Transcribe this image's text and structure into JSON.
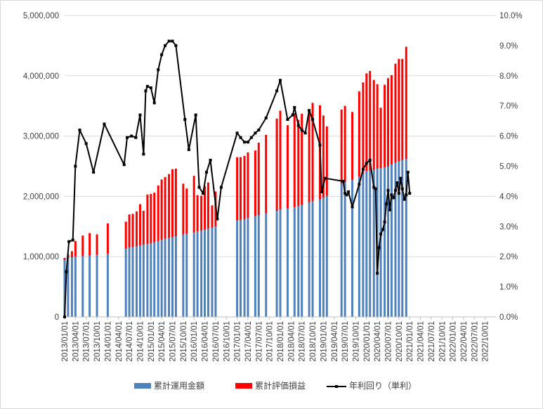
{
  "chart_data": {
    "type": "bar",
    "stacked": true,
    "x_tick_labels": [
      "2013/01/01",
      "2013/04/01",
      "2013/07/01",
      "2013/10/01",
      "2014/01/01",
      "2014/04/01",
      "2014/07/01",
      "2014/10/01",
      "2015/01/01",
      "2015/04/01",
      "2015/07/01",
      "2015/10/01",
      "2016/01/01",
      "2016/04/01",
      "2016/07/01",
      "2016/10/01",
      "2017/01/01",
      "2017/04/01",
      "2017/07/01",
      "2017/10/01",
      "2018/01/01",
      "2018/04/01",
      "2018/07/01",
      "2018/10/01",
      "2019/01/01",
      "2019/04/01",
      "2019/07/01",
      "2019/10/01",
      "2020/01/01",
      "2020/04/01",
      "2020/07/01",
      "2020/10/01",
      "2021/01/01",
      "2021/04/01",
      "2021/07/01",
      "2021/10/01",
      "2022/01/01",
      "2022/04/01",
      "2022/07/01",
      "2022/10/01"
    ],
    "y_left": {
      "ticks": [
        "0",
        "1,000,000",
        "2,000,000",
        "3,000,000",
        "4,000,000",
        "5,000,000"
      ],
      "range": [
        0,
        5000000
      ]
    },
    "y_right": {
      "ticks": [
        "0.0%",
        "1.0%",
        "2.0%",
        "3.0%",
        "4.0%",
        "5.0%",
        "6.0%",
        "7.0%",
        "8.0%",
        "9.0%",
        "10.0%"
      ],
      "range": [
        0,
        10
      ]
    },
    "x_range": [
      2013.0,
      2023.0
    ],
    "grid": "horizontal",
    "legend_position": "bottom",
    "series": [
      {
        "name": "累計運用金額",
        "kind": "bar",
        "axis": "left",
        "color": "#4f81bd",
        "points": [
          [
            2013.0,
            950000
          ],
          [
            2013.08,
            970000
          ],
          [
            2013.17,
            990000
          ],
          [
            2013.25,
            1000000
          ],
          [
            2013.42,
            1010000
          ],
          [
            2013.58,
            1020000
          ],
          [
            2013.75,
            1030000
          ],
          [
            2014.0,
            1050000
          ],
          [
            2014.42,
            1130000
          ],
          [
            2014.5,
            1150000
          ],
          [
            2014.58,
            1160000
          ],
          [
            2014.67,
            1170000
          ],
          [
            2014.75,
            1190000
          ],
          [
            2014.83,
            1200000
          ],
          [
            2014.92,
            1210000
          ],
          [
            2015.0,
            1220000
          ],
          [
            2015.08,
            1240000
          ],
          [
            2015.17,
            1260000
          ],
          [
            2015.25,
            1280000
          ],
          [
            2015.33,
            1300000
          ],
          [
            2015.42,
            1310000
          ],
          [
            2015.5,
            1320000
          ],
          [
            2015.58,
            1340000
          ],
          [
            2015.75,
            1370000
          ],
          [
            2015.83,
            1380000
          ],
          [
            2016.0,
            1400000
          ],
          [
            2016.08,
            1420000
          ],
          [
            2016.17,
            1430000
          ],
          [
            2016.25,
            1450000
          ],
          [
            2016.33,
            1470000
          ],
          [
            2016.42,
            1480000
          ],
          [
            2016.5,
            1500000
          ],
          [
            2017.0,
            1600000
          ],
          [
            2017.08,
            1610000
          ],
          [
            2017.17,
            1620000
          ],
          [
            2017.25,
            1640000
          ],
          [
            2017.42,
            1670000
          ],
          [
            2017.5,
            1690000
          ],
          [
            2017.67,
            1720000
          ],
          [
            2017.92,
            1760000
          ],
          [
            2018.0,
            1780000
          ],
          [
            2018.17,
            1800000
          ],
          [
            2018.33,
            1820000
          ],
          [
            2018.42,
            1840000
          ],
          [
            2018.5,
            1860000
          ],
          [
            2018.67,
            1900000
          ],
          [
            2018.75,
            1920000
          ],
          [
            2018.92,
            1950000
          ],
          [
            2019.0,
            1980000
          ],
          [
            2019.08,
            2010000
          ],
          [
            2019.42,
            2220000
          ],
          [
            2019.5,
            2240000
          ],
          [
            2019.67,
            2270000
          ],
          [
            2019.83,
            2330000
          ],
          [
            2019.92,
            2370000
          ],
          [
            2020.0,
            2420000
          ],
          [
            2020.08,
            2430000
          ],
          [
            2020.17,
            2440000
          ],
          [
            2020.25,
            2460000
          ],
          [
            2020.33,
            2470000
          ],
          [
            2020.42,
            2480000
          ],
          [
            2020.5,
            2500000
          ],
          [
            2020.58,
            2530000
          ],
          [
            2020.67,
            2560000
          ],
          [
            2020.75,
            2580000
          ],
          [
            2020.83,
            2600000
          ],
          [
            2020.92,
            2620000
          ]
        ]
      },
      {
        "name": "累計評価損益",
        "kind": "bar",
        "axis": "left",
        "color": "#ff0000",
        "points": [
          [
            2013.0,
            30000
          ],
          [
            2013.08,
            70000
          ],
          [
            2013.17,
            100000
          ],
          [
            2013.25,
            260000
          ],
          [
            2013.42,
            340000
          ],
          [
            2013.58,
            370000
          ],
          [
            2013.75,
            340000
          ],
          [
            2014.0,
            500000
          ],
          [
            2014.42,
            450000
          ],
          [
            2014.5,
            550000
          ],
          [
            2014.58,
            550000
          ],
          [
            2014.67,
            580000
          ],
          [
            2014.75,
            680000
          ],
          [
            2014.83,
            560000
          ],
          [
            2014.92,
            820000
          ],
          [
            2015.0,
            820000
          ],
          [
            2015.08,
            820000
          ],
          [
            2015.17,
            920000
          ],
          [
            2015.25,
            1000000
          ],
          [
            2015.33,
            1020000
          ],
          [
            2015.42,
            1060000
          ],
          [
            2015.5,
            1130000
          ],
          [
            2015.58,
            1120000
          ],
          [
            2015.75,
            840000
          ],
          [
            2015.83,
            750000
          ],
          [
            2016.0,
            940000
          ],
          [
            2016.08,
            600000
          ],
          [
            2016.17,
            580000
          ],
          [
            2016.25,
            720000
          ],
          [
            2016.33,
            760000
          ],
          [
            2016.42,
            370000
          ],
          [
            2016.5,
            580000
          ],
          [
            2017.0,
            1050000
          ],
          [
            2017.08,
            1040000
          ],
          [
            2017.17,
            1050000
          ],
          [
            2017.25,
            1090000
          ],
          [
            2017.42,
            1090000
          ],
          [
            2017.5,
            1200000
          ],
          [
            2017.67,
            1300000
          ],
          [
            2017.92,
            1530000
          ],
          [
            2018.0,
            1640000
          ],
          [
            2018.17,
            1380000
          ],
          [
            2018.33,
            1560000
          ],
          [
            2018.42,
            1430000
          ],
          [
            2018.5,
            1510000
          ],
          [
            2018.67,
            1530000
          ],
          [
            2018.75,
            1630000
          ],
          [
            2018.92,
            1560000
          ],
          [
            2019.0,
            1360000
          ],
          [
            2019.08,
            1150000
          ],
          [
            2019.42,
            1220000
          ],
          [
            2019.5,
            1260000
          ],
          [
            2019.67,
            1130000
          ],
          [
            2019.83,
            1410000
          ],
          [
            2019.92,
            1520000
          ],
          [
            2020.0,
            1620000
          ],
          [
            2020.08,
            1650000
          ],
          [
            2020.17,
            1490000
          ],
          [
            2020.25,
            1400000
          ],
          [
            2020.33,
            1000000
          ],
          [
            2020.42,
            1370000
          ],
          [
            2020.5,
            1460000
          ],
          [
            2020.58,
            1480000
          ],
          [
            2020.67,
            1640000
          ],
          [
            2020.75,
            1700000
          ],
          [
            2020.83,
            1680000
          ],
          [
            2020.92,
            1860000
          ]
        ]
      },
      {
        "name": "年利回り（単利）",
        "kind": "line",
        "axis": "right",
        "color": "#000000",
        "points": [
          [
            2013.0,
            0.0
          ],
          [
            2013.04,
            1.5
          ],
          [
            2013.1,
            2.5
          ],
          [
            2013.19,
            2.55
          ],
          [
            2013.25,
            5.0
          ],
          [
            2013.35,
            6.2
          ],
          [
            2013.5,
            5.75
          ],
          [
            2013.67,
            4.8
          ],
          [
            2013.92,
            6.4
          ],
          [
            2014.38,
            5.05
          ],
          [
            2014.45,
            5.95
          ],
          [
            2014.55,
            6.0
          ],
          [
            2014.65,
            5.95
          ],
          [
            2014.75,
            6.7
          ],
          [
            2014.83,
            5.4
          ],
          [
            2014.88,
            7.5
          ],
          [
            2014.92,
            7.65
          ],
          [
            2015.0,
            7.6
          ],
          [
            2015.08,
            7.1
          ],
          [
            2015.17,
            8.2
          ],
          [
            2015.25,
            8.7
          ],
          [
            2015.33,
            9.0
          ],
          [
            2015.42,
            9.15
          ],
          [
            2015.5,
            9.15
          ],
          [
            2015.58,
            9.0
          ],
          [
            2015.79,
            6.55
          ],
          [
            2015.88,
            5.55
          ],
          [
            2016.04,
            6.7
          ],
          [
            2016.12,
            4.3
          ],
          [
            2016.21,
            4.1
          ],
          [
            2016.29,
            4.8
          ],
          [
            2016.38,
            5.2
          ],
          [
            2016.54,
            3.25
          ],
          [
            2016.63,
            4.3
          ],
          [
            2017.0,
            6.1
          ],
          [
            2017.08,
            5.95
          ],
          [
            2017.17,
            5.8
          ],
          [
            2017.25,
            5.8
          ],
          [
            2017.33,
            5.95
          ],
          [
            2017.42,
            6.1
          ],
          [
            2017.5,
            6.2
          ],
          [
            2017.67,
            6.6
          ],
          [
            2017.92,
            7.5
          ],
          [
            2018.0,
            7.85
          ],
          [
            2018.17,
            6.55
          ],
          [
            2018.29,
            6.7
          ],
          [
            2018.33,
            6.95
          ],
          [
            2018.42,
            6.35
          ],
          [
            2018.5,
            6.2
          ],
          [
            2018.58,
            6.1
          ],
          [
            2018.67,
            6.85
          ],
          [
            2018.75,
            6.55
          ],
          [
            2018.92,
            5.7
          ],
          [
            2018.96,
            4.15
          ],
          [
            2019.04,
            4.6
          ],
          [
            2019.46,
            4.5
          ],
          [
            2019.5,
            4.1
          ],
          [
            2019.54,
            4.05
          ],
          [
            2019.58,
            4.15
          ],
          [
            2019.67,
            3.65
          ],
          [
            2019.83,
            4.4
          ],
          [
            2019.92,
            4.9
          ],
          [
            2020.0,
            5.1
          ],
          [
            2020.08,
            5.2
          ],
          [
            2020.17,
            4.3
          ],
          [
            2020.21,
            4.25
          ],
          [
            2020.25,
            1.45
          ],
          [
            2020.29,
            2.3
          ],
          [
            2020.33,
            2.75
          ],
          [
            2020.38,
            2.9
          ],
          [
            2020.42,
            3.15
          ],
          [
            2020.46,
            3.75
          ],
          [
            2020.5,
            4.2
          ],
          [
            2020.54,
            3.55
          ],
          [
            2020.58,
            4.05
          ],
          [
            2020.63,
            3.95
          ],
          [
            2020.67,
            4.2
          ],
          [
            2020.71,
            4.45
          ],
          [
            2020.75,
            4.1
          ],
          [
            2020.79,
            4.6
          ],
          [
            2020.83,
            4.25
          ],
          [
            2020.88,
            3.9
          ],
          [
            2020.92,
            4.05
          ],
          [
            2020.96,
            4.8
          ],
          [
            2021.0,
            4.1
          ]
        ]
      }
    ]
  }
}
